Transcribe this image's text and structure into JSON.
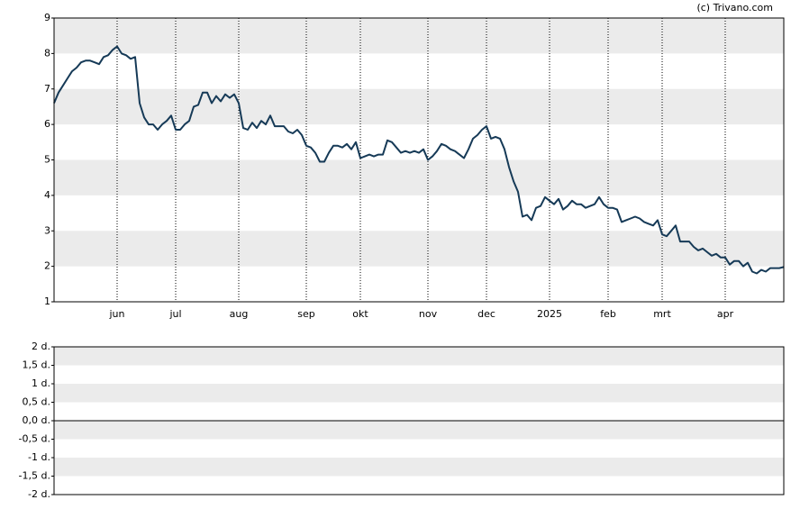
{
  "chart_data": [
    {
      "type": "line",
      "annotation": "(c) Trivano.com",
      "categories": [
        null,
        null,
        null,
        null,
        null,
        null,
        null,
        null,
        null,
        null,
        null,
        null,
        null,
        null,
        "jun",
        null,
        null,
        null,
        null,
        null,
        null,
        null,
        null,
        null,
        null,
        null,
        null,
        "jul",
        null,
        null,
        null,
        null,
        null,
        null,
        null,
        null,
        null,
        null,
        null,
        null,
        null,
        "aug",
        null,
        null,
        null,
        null,
        null,
        null,
        null,
        null,
        null,
        null,
        null,
        null,
        null,
        null,
        "sep",
        null,
        null,
        null,
        null,
        null,
        null,
        null,
        null,
        null,
        null,
        null,
        "okt",
        null,
        null,
        null,
        null,
        null,
        null,
        null,
        null,
        null,
        null,
        null,
        null,
        null,
        null,
        "nov",
        null,
        null,
        null,
        null,
        null,
        null,
        null,
        null,
        null,
        null,
        null,
        null,
        "dec",
        null,
        null,
        null,
        null,
        null,
        null,
        null,
        null,
        null,
        null,
        null,
        null,
        null,
        "2025",
        null,
        null,
        null,
        null,
        null,
        null,
        null,
        null,
        null,
        null,
        null,
        null,
        "feb",
        null,
        null,
        null,
        null,
        null,
        null,
        null,
        null,
        null,
        null,
        null,
        "mrt",
        null,
        null,
        null,
        null,
        null,
        null,
        null,
        null,
        null,
        null,
        null,
        null,
        null,
        "apr",
        null,
        null,
        null,
        null,
        null,
        null,
        null,
        null,
        null,
        null,
        null,
        null,
        null
      ],
      "series": [
        {
          "color": "#163a57",
          "values": [
            6.6,
            6.9,
            7.1,
            7.3,
            7.5,
            7.6,
            7.75,
            7.8,
            7.8,
            7.75,
            7.7,
            7.9,
            7.95,
            8.1,
            8.2,
            8.0,
            7.95,
            7.85,
            7.9,
            6.6,
            6.2,
            6.0,
            6.0,
            5.85,
            6.0,
            6.1,
            6.25,
            5.85,
            5.85,
            6.0,
            6.1,
            6.5,
            6.55,
            6.9,
            6.9,
            6.6,
            6.8,
            6.65,
            6.85,
            6.75,
            6.85,
            6.6,
            5.9,
            5.85,
            6.05,
            5.9,
            6.1,
            6.0,
            6.25,
            5.95,
            5.95,
            5.95,
            5.8,
            5.75,
            5.85,
            5.7,
            5.4,
            5.35,
            5.2,
            4.95,
            4.95,
            5.2,
            5.4,
            5.4,
            5.35,
            5.45,
            5.3,
            5.5,
            5.05,
            5.1,
            5.15,
            5.1,
            5.15,
            5.15,
            5.55,
            5.5,
            5.35,
            5.2,
            5.25,
            5.2,
            5.25,
            5.2,
            5.3,
            5.0,
            5.1,
            5.25,
            5.45,
            5.4,
            5.3,
            5.25,
            5.15,
            5.05,
            5.3,
            5.6,
            5.7,
            5.85,
            5.95,
            5.6,
            5.65,
            5.6,
            5.3,
            4.8,
            4.4,
            4.1,
            3.4,
            3.45,
            3.3,
            3.65,
            3.7,
            3.95,
            3.85,
            3.75,
            3.9,
            3.6,
            3.7,
            3.85,
            3.75,
            3.75,
            3.65,
            3.7,
            3.75,
            3.95,
            3.75,
            3.65,
            3.65,
            3.6,
            3.25,
            3.3,
            3.35,
            3.4,
            3.35,
            3.25,
            3.2,
            3.15,
            3.3,
            2.9,
            2.85,
            3.0,
            3.15,
            2.7,
            2.7,
            2.7,
            2.55,
            2.45,
            2.5,
            2.4,
            2.3,
            2.35,
            2.25,
            2.25,
            2.05,
            2.15,
            2.15,
            2.0,
            2.1,
            1.85,
            1.8,
            1.9,
            1.85,
            1.95,
            1.95,
            1.95,
            1.98
          ]
        }
      ],
      "ylim": [
        1,
        9
      ],
      "yticks": [
        1,
        2,
        3,
        4,
        5,
        6,
        7,
        8,
        9
      ]
    },
    {
      "type": "bar",
      "ylim": [
        -2,
        2
      ],
      "yticks": [
        {
          "value": -2,
          "label": "-2 d."
        },
        {
          "value": -1.5,
          "label": "-1,5 d."
        },
        {
          "value": -1,
          "label": "-1 d."
        },
        {
          "value": -0.5,
          "label": "-0,5 d."
        },
        {
          "value": 0,
          "label": "0,0 d."
        },
        {
          "value": 0.5,
          "label": "0,5 d."
        },
        {
          "value": 1,
          "label": "1 d."
        },
        {
          "value": 1.5,
          "label": "1,5 d."
        },
        {
          "value": 2,
          "label": "2 d."
        }
      ]
    }
  ]
}
